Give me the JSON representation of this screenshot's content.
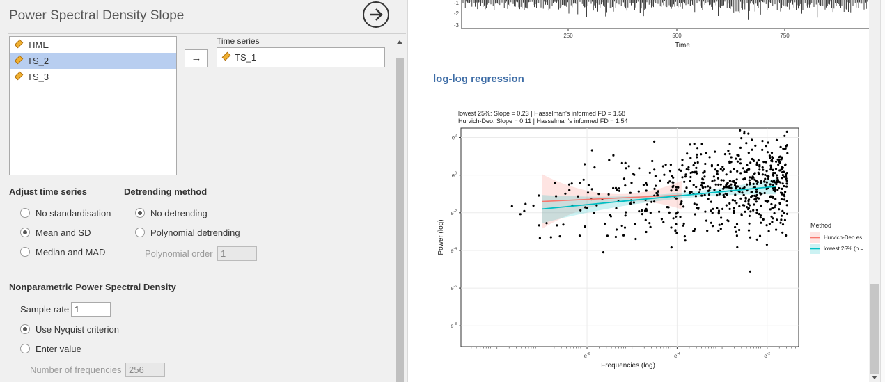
{
  "panel": {
    "title": "Power Spectral Density Slope",
    "variables": [
      {
        "name": "TIME",
        "selected": false
      },
      {
        "name": "TS_2",
        "selected": true
      },
      {
        "name": "TS_3",
        "selected": false
      }
    ],
    "move_button": "→",
    "time_series_label": "Time series",
    "time_series_value": "TS_1",
    "adjust": {
      "heading": "Adjust time series",
      "options": [
        "No standardisation",
        "Mean and SD",
        "Median and MAD"
      ],
      "selected": "Mean and SD"
    },
    "detrend": {
      "heading": "Detrending method",
      "options": [
        "No detrending",
        "Polynomial detrending"
      ],
      "selected": "No detrending",
      "order_label": "Polynomial order",
      "order_value": "1"
    },
    "psd": {
      "heading": "Nonparametric Power Spectral Density",
      "sample_rate_label": "Sample rate",
      "sample_rate_value": "1",
      "options": [
        "Use Nyquist criterion",
        "Enter value"
      ],
      "selected": "Use Nyquist criterion",
      "nfreq_label": "Number of frequencies",
      "nfreq_value": "256"
    }
  },
  "results": {
    "section_title": "log-log regression",
    "colors": {
      "section_title": "#3e6da6",
      "hurvich": "#f8766d",
      "lowest": "#00bfc4"
    }
  },
  "chart_data": [
    {
      "type": "line",
      "xlabel": "Time",
      "ylabel": "",
      "x_ticks": [
        "250",
        "500",
        "750"
      ],
      "y_ticks": [
        "-1",
        "-2",
        "-3"
      ],
      "note": "time series trace, top portion cropped"
    },
    {
      "type": "scatter",
      "title_lines": [
        "lowest 25%: Slope = 0.23 | Hasselman's informed FD = 1.58",
        "Hurvich-Deo: Slope = 0.11 | Hasselman's informed FD = 1.54"
      ],
      "xlabel": "Frequencies (log)",
      "ylabel": "Power (log)",
      "x_ticks": [
        "e-6",
        "e-4",
        "e-2"
      ],
      "y_ticks": [
        "e2",
        "e0",
        "e-2",
        "e-4",
        "e-6",
        "e-8"
      ],
      "x_scale": "log",
      "y_scale": "log",
      "legend": {
        "title": "Method",
        "entries": [
          "Hurvich-Deo es",
          "lowest 25% (n ="
        ],
        "placement": "right"
      },
      "series": [
        {
          "name": "Hurvich-Deo es",
          "slope": 0.11,
          "x": [
            -7.0,
            -3.9
          ],
          "y": [
            -1.4,
            -1.06
          ]
        },
        {
          "name": "lowest 25% (n =",
          "slope": 0.23,
          "x": [
            -7.0,
            -1.8
          ],
          "y": [
            -1.8,
            -0.6
          ]
        }
      ]
    }
  ]
}
